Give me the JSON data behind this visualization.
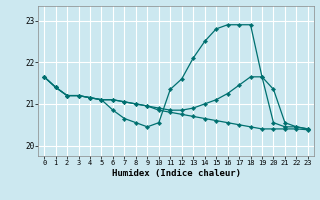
{
  "xlabel": "Humidex (Indice chaleur)",
  "bg_color": "#cce8f0",
  "grid_color": "#ffffff",
  "line_color": "#007070",
  "xlim": [
    -0.5,
    23.5
  ],
  "ylim": [
    19.75,
    23.35
  ],
  "yticks": [
    20,
    21,
    22,
    23
  ],
  "xticks": [
    0,
    1,
    2,
    3,
    4,
    5,
    6,
    7,
    8,
    9,
    10,
    11,
    12,
    13,
    14,
    15,
    16,
    17,
    18,
    19,
    20,
    21,
    22,
    23
  ],
  "line_A_x": [
    0,
    1,
    2,
    3,
    4,
    5,
    6,
    7,
    8,
    9,
    10,
    11,
    12,
    13,
    14,
    15,
    16,
    17,
    18,
    19,
    20,
    21,
    22,
    23
  ],
  "line_A_y": [
    21.65,
    21.4,
    21.2,
    21.2,
    21.15,
    21.1,
    20.85,
    20.65,
    20.55,
    20.45,
    20.55,
    21.35,
    21.6,
    22.1,
    22.5,
    22.8,
    22.9,
    22.9,
    22.9,
    21.65,
    20.55,
    20.45,
    20.45,
    20.4
  ],
  "line_B_x": [
    0,
    1,
    2,
    3,
    4,
    5,
    6,
    7,
    8,
    9,
    10,
    11,
    12,
    13,
    14,
    15,
    16,
    17,
    18,
    19,
    20,
    21,
    22,
    23
  ],
  "line_B_y": [
    21.65,
    21.4,
    21.2,
    21.2,
    21.15,
    21.1,
    21.1,
    21.05,
    21.0,
    20.95,
    20.9,
    20.85,
    20.85,
    20.9,
    21.0,
    21.1,
    21.25,
    21.45,
    21.65,
    21.65,
    21.35,
    20.55,
    20.45,
    20.4
  ],
  "line_C_x": [
    0,
    1,
    2,
    3,
    4,
    5,
    6,
    7,
    8,
    9,
    10,
    11,
    12,
    13,
    14,
    15,
    16,
    17,
    18,
    19,
    20,
    21,
    22,
    23
  ],
  "line_C_y": [
    21.65,
    21.4,
    21.2,
    21.2,
    21.15,
    21.1,
    21.1,
    21.05,
    21.0,
    20.95,
    20.85,
    20.8,
    20.75,
    20.7,
    20.65,
    20.6,
    20.55,
    20.5,
    20.45,
    20.4,
    20.4,
    20.4,
    20.4,
    20.38
  ]
}
